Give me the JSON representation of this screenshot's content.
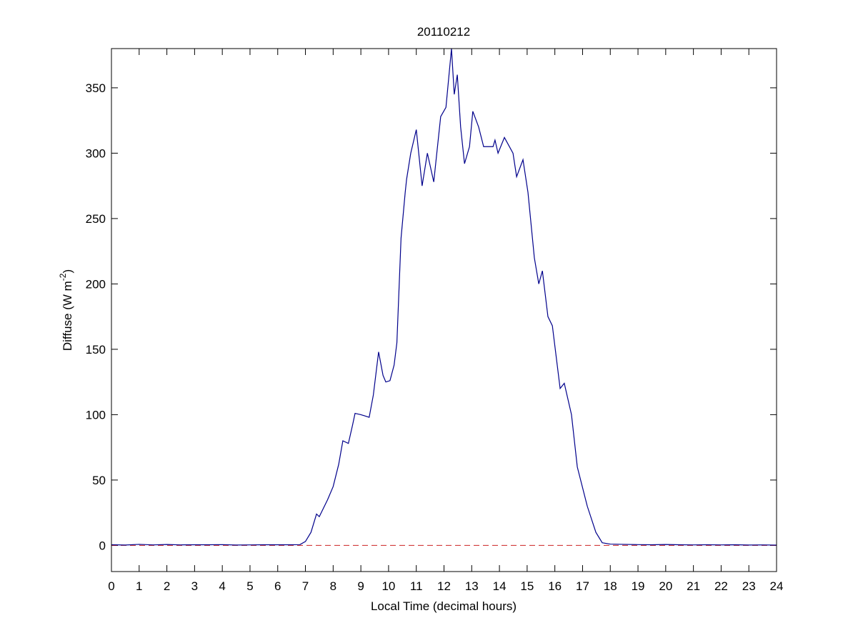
{
  "chart_data": {
    "type": "line",
    "title": "20110212",
    "xlabel": "Local Time (decimal hours)",
    "ylabel": {
      "text": "Diffuse (W m",
      "sup": "-2",
      "end": ")"
    },
    "x": [
      0,
      0.5,
      1,
      1.5,
      2,
      2.5,
      3,
      3.5,
      4,
      4.5,
      5,
      5.5,
      6,
      6.5,
      6.8,
      7.0,
      7.2,
      7.4,
      7.5,
      7.8,
      8.0,
      8.2,
      8.35,
      8.55,
      8.7,
      8.79,
      9.0,
      9.3,
      9.45,
      9.64,
      9.8,
      9.9,
      10.05,
      10.2,
      10.3,
      10.45,
      10.6,
      10.65,
      10.8,
      11.0,
      11.21,
      11.4,
      11.63,
      11.88,
      12.07,
      12.27,
      12.37,
      12.48,
      12.6,
      12.74,
      12.92,
      13.04,
      13.25,
      13.43,
      13.77,
      13.84,
      13.95,
      14.18,
      14.49,
      14.62,
      14.85,
      15.03,
      15.26,
      15.42,
      15.55,
      15.75,
      15.91,
      16.19,
      16.34,
      16.6,
      16.81,
      17.17,
      17.48,
      17.71,
      18,
      18.5,
      19,
      19.5,
      20,
      20.5,
      21,
      21.5,
      22,
      22.5,
      23,
      23.5,
      24
    ],
    "series": [
      {
        "name": "Diffuse",
        "color": "#00008b",
        "values": [
          0.5,
          0.3,
          0.8,
          0.4,
          0.7,
          0.4,
          0.5,
          0.5,
          0.6,
          0.3,
          0.4,
          0.5,
          0.5,
          0.5,
          0.6,
          3,
          10,
          24,
          22,
          35,
          45,
          62,
          80,
          78,
          92,
          101,
          100,
          98,
          115,
          148,
          130,
          125,
          126,
          138,
          155,
          235,
          270,
          280,
          300,
          318,
          275,
          300,
          278,
          328,
          335,
          380,
          345,
          360,
          320,
          292,
          305,
          332,
          320,
          305,
          305,
          310,
          300,
          312,
          300,
          282,
          295,
          270,
          220,
          200,
          210,
          175,
          168,
          120,
          124,
          100,
          60,
          30,
          10,
          2,
          1,
          0.8,
          0.6,
          0.5,
          0.7,
          0.5,
          0.4,
          0.5,
          0.4,
          0.5,
          0.3,
          0.4,
          0.2
        ]
      }
    ],
    "hline": {
      "value": 0,
      "color": "#cc2222"
    },
    "xlim": [
      0,
      24
    ],
    "xticks": [
      0,
      1,
      2,
      3,
      4,
      5,
      6,
      7,
      8,
      9,
      10,
      11,
      12,
      13,
      14,
      15,
      16,
      17,
      18,
      19,
      20,
      21,
      22,
      23,
      24
    ],
    "ylim": [
      -20,
      380
    ],
    "yticks": [
      0,
      50,
      100,
      150,
      200,
      250,
      300,
      350
    ],
    "grid": false
  }
}
